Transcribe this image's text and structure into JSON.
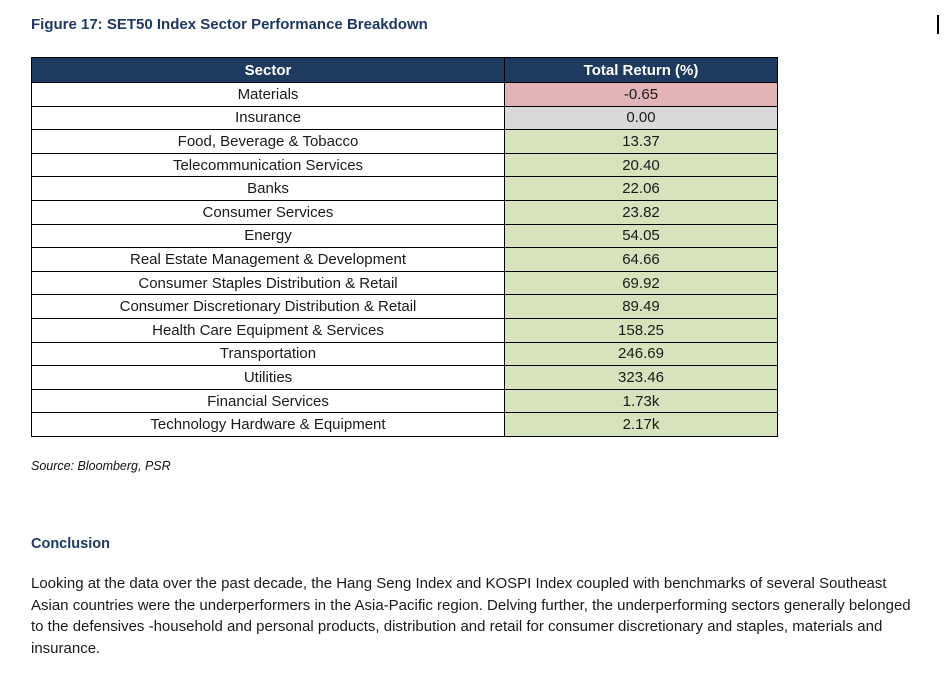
{
  "figure": {
    "title": "Figure 17: SET50 Index Sector Performance Breakdown",
    "source": "Source: Bloomberg, PSR"
  },
  "table": {
    "columns": [
      "Sector",
      "Total Return (%)"
    ],
    "rows": [
      {
        "sector": "Materials",
        "value": "-0.65",
        "status": "negative"
      },
      {
        "sector": "Insurance",
        "value": "0.00",
        "status": "neutral"
      },
      {
        "sector": "Food, Beverage & Tobacco",
        "value": "13.37",
        "status": "positive"
      },
      {
        "sector": "Telecommunication Services",
        "value": "20.40",
        "status": "positive"
      },
      {
        "sector": "Banks",
        "value": "22.06",
        "status": "positive"
      },
      {
        "sector": "Consumer Services",
        "value": "23.82",
        "status": "positive"
      },
      {
        "sector": "Energy",
        "value": "54.05",
        "status": "positive"
      },
      {
        "sector": "Real Estate Management & Development",
        "value": "64.66",
        "status": "positive"
      },
      {
        "sector": "Consumer Staples Distribution & Retail",
        "value": "69.92",
        "status": "positive"
      },
      {
        "sector": "Consumer Discretionary Distribution & Retail",
        "value": "89.49",
        "status": "positive"
      },
      {
        "sector": "Health Care Equipment & Services",
        "value": "158.25",
        "status": "positive"
      },
      {
        "sector": "Transportation",
        "value": "246.69",
        "status": "positive"
      },
      {
        "sector": "Utilities",
        "value": "323.46",
        "status": "positive"
      },
      {
        "sector": "Financial Services",
        "value": "1.73k",
        "status": "positive"
      },
      {
        "sector": "Technology Hardware & Equipment",
        "value": "2.17k",
        "status": "positive"
      }
    ]
  },
  "chart_data": {
    "type": "table",
    "title": "Figure 17: SET50 Index Sector Performance Breakdown",
    "columns": [
      "Sector",
      "Total Return (%)"
    ],
    "categories": [
      "Materials",
      "Insurance",
      "Food, Beverage & Tobacco",
      "Telecommunication Services",
      "Banks",
      "Consumer Services",
      "Energy",
      "Real Estate Management & Development",
      "Consumer Staples Distribution & Retail",
      "Consumer Discretionary Distribution & Retail",
      "Health Care Equipment & Services",
      "Transportation",
      "Utilities",
      "Financial Services",
      "Technology Hardware & Equipment"
    ],
    "values": [
      -0.65,
      0.0,
      13.37,
      20.4,
      22.06,
      23.82,
      54.05,
      64.66,
      69.92,
      89.49,
      158.25,
      246.69,
      323.46,
      1730,
      2170
    ],
    "values_display": [
      "-0.65",
      "0.00",
      "13.37",
      "20.40",
      "22.06",
      "23.82",
      "54.05",
      "64.66",
      "69.92",
      "89.49",
      "158.25",
      "246.69",
      "323.46",
      "1.73k",
      "2.17k"
    ],
    "source": "Source: Bloomberg, PSR"
  },
  "colors": {
    "header_bg": "#1E3A5F",
    "header_text": "#FFFFFF",
    "negative_bg": "#E3B4B7",
    "neutral_bg": "#D9D9D9",
    "positive_bg": "#D6E3BC",
    "title_color": "#1F3864"
  },
  "conclusion": {
    "heading": "Conclusion",
    "body": "Looking at the data over the past decade, the Hang Seng Index and KOSPI Index coupled with benchmarks of several Southeast Asian countries were the underperformers in the Asia-Pacific region. Delving further, the underperforming sectors generally belonged to the defensives -household and personal products, distribution and retail for consumer discretionary and staples, materials and insurance."
  }
}
